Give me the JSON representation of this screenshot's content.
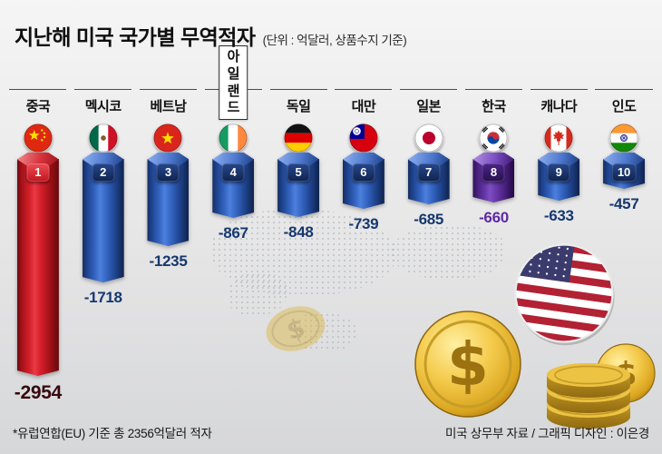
{
  "title": "지난해 미국 국가별 무역적자",
  "subtitle": "(단위 : 억달러, 상품수지 기준)",
  "footnote": "*유럽연합(EU) 기준 총 2356억달러 적자",
  "credit": "미국 상무부 자료 / 그래픽 디자인 : 이은경",
  "colors": {
    "china_bar": "#d6202b",
    "default_bar": "#3465c2",
    "korea_bar": "#6637a8",
    "value_text": "#16386e",
    "china_value_text": "#36090c",
    "korea_value_text": "#5e2ba2",
    "gold_coin": "#f2c94c"
  },
  "chart_data": {
    "type": "bar",
    "title": "지난해 미국 국가별 무역적자",
    "unit": "억달러",
    "basis": "상품수지 기준",
    "orientation": "hanging-columns",
    "categories": [
      "중국",
      "멕시코",
      "베트남",
      "아일랜드",
      "독일",
      "대만",
      "일본",
      "한국",
      "캐나다",
      "인도"
    ],
    "values": [
      -2954,
      -1718,
      -1235,
      -867,
      -848,
      -739,
      -685,
      -660,
      -633,
      -457
    ],
    "max_abs_value": 2954,
    "legend": "none",
    "grid": false,
    "countries": [
      {
        "rank": 1,
        "name": "중국",
        "code": "cn",
        "value": -2954,
        "label": "-2954",
        "theme": "red",
        "boxed": false
      },
      {
        "rank": 2,
        "name": "멕시코",
        "code": "mx",
        "value": -1718,
        "label": "-1718",
        "theme": "blue",
        "boxed": false
      },
      {
        "rank": 3,
        "name": "베트남",
        "code": "vn",
        "value": -1235,
        "label": "-1235",
        "theme": "blue",
        "boxed": false
      },
      {
        "rank": 4,
        "name": "아일랜드",
        "display": "아일\n랜드",
        "code": "ie",
        "value": -867,
        "label": "-867",
        "theme": "blue",
        "boxed": true
      },
      {
        "rank": 5,
        "name": "독일",
        "code": "de",
        "value": -848,
        "label": "-848",
        "theme": "blue",
        "boxed": false
      },
      {
        "rank": 6,
        "name": "대만",
        "code": "tw",
        "value": -739,
        "label": "-739",
        "theme": "blue",
        "boxed": false
      },
      {
        "rank": 7,
        "name": "일본",
        "code": "jp",
        "value": -685,
        "label": "-685",
        "theme": "blue",
        "boxed": false
      },
      {
        "rank": 8,
        "name": "한국",
        "code": "kr",
        "value": -660,
        "label": "-660",
        "theme": "purple",
        "boxed": false
      },
      {
        "rank": 9,
        "name": "캐나다",
        "code": "ca",
        "value": -633,
        "label": "-633",
        "theme": "blue",
        "boxed": false
      },
      {
        "rank": 10,
        "name": "인도",
        "code": "in",
        "value": -457,
        "label": "-457",
        "theme": "blue",
        "boxed": false
      }
    ]
  },
  "decor": {
    "coin_symbol": "$",
    "illustrations": [
      "us-flag-coin",
      "dollar-coin",
      "coin-stack",
      "faint-coin",
      "dotted-world-map"
    ]
  }
}
